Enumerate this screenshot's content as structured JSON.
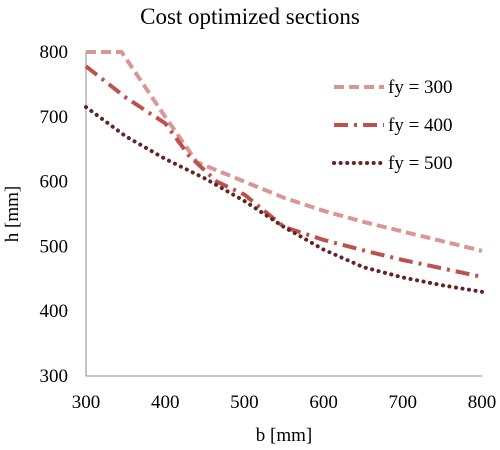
{
  "chart_data": {
    "type": "line",
    "title": "Cost optimized sections",
    "xlabel": "b [mm]",
    "ylabel": "h [mm]",
    "xlim": [
      300,
      800
    ],
    "ylim": [
      300,
      800
    ],
    "xticks": [
      300,
      400,
      500,
      600,
      700,
      800
    ],
    "yticks": [
      300,
      400,
      500,
      600,
      700,
      800
    ],
    "grid": false,
    "legend_position": "top-right",
    "series": [
      {
        "name": "fy = 300",
        "color": "#D99694",
        "dash": "dashed",
        "x": [
          300,
          345,
          400,
          440,
          500,
          550,
          600,
          650,
          700,
          750,
          800
        ],
        "y": [
          800,
          800,
          700,
          630,
          600,
          575,
          555,
          538,
          523,
          508,
          493
        ]
      },
      {
        "name": "fy = 400",
        "color": "#C0504D",
        "dash": "dash-dot",
        "x": [
          300,
          350,
          400,
          430,
          465,
          500,
          550,
          600,
          650,
          700,
          750,
          800
        ],
        "y": [
          778,
          730,
          690,
          640,
          600,
          580,
          530,
          510,
          494,
          479,
          466,
          453
        ]
      },
      {
        "name": "fy = 500",
        "color": "#632423",
        "dash": "dotted",
        "x": [
          300,
          350,
          400,
          450,
          500,
          550,
          600,
          650,
          700,
          750,
          800
        ],
        "y": [
          715,
          670,
          635,
          605,
          570,
          530,
          495,
          468,
          452,
          440,
          430
        ]
      }
    ]
  }
}
